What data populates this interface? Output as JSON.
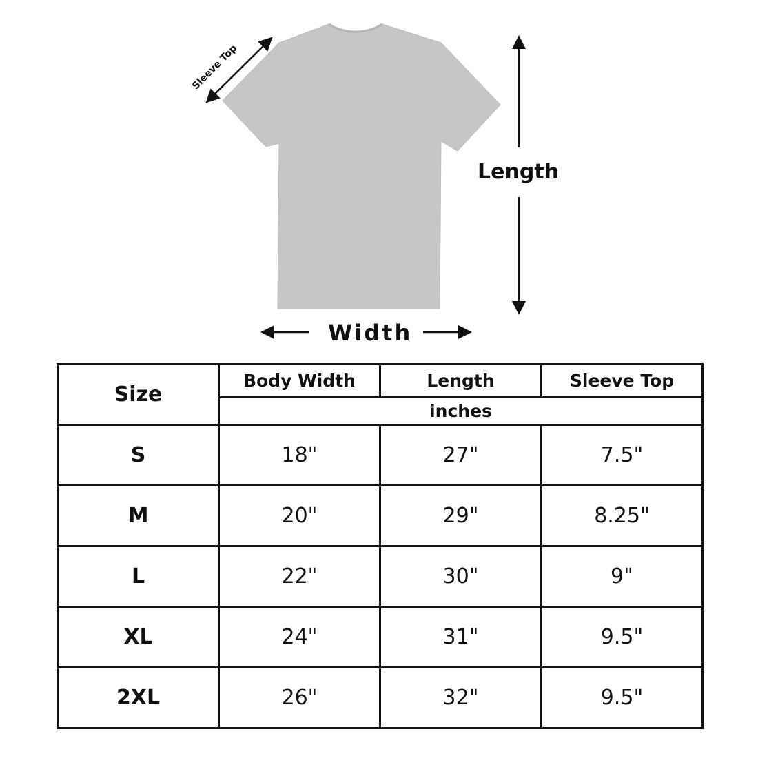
{
  "diagram": {
    "sleeve_label": "Sleeve Top",
    "length_label": "Length",
    "width_label": "Width",
    "shirt_color": "#c6c6c6"
  },
  "table": {
    "headers": {
      "size": "Size",
      "body_width": "Body Width",
      "length": "Length",
      "sleeve_top": "Sleeve Top"
    },
    "unit": "inches",
    "rows": [
      {
        "size": "S",
        "body_width": "18\"",
        "length": "27\"",
        "sleeve_top": "7.5\""
      },
      {
        "size": "M",
        "body_width": "20\"",
        "length": "29\"",
        "sleeve_top": "8.25\""
      },
      {
        "size": "L",
        "body_width": "22\"",
        "length": "30\"",
        "sleeve_top": "9\""
      },
      {
        "size": "XL",
        "body_width": "24\"",
        "length": "31\"",
        "sleeve_top": "9.5\""
      },
      {
        "size": "2XL",
        "body_width": "26\"",
        "length": "32\"",
        "sleeve_top": "9.5\""
      }
    ]
  }
}
